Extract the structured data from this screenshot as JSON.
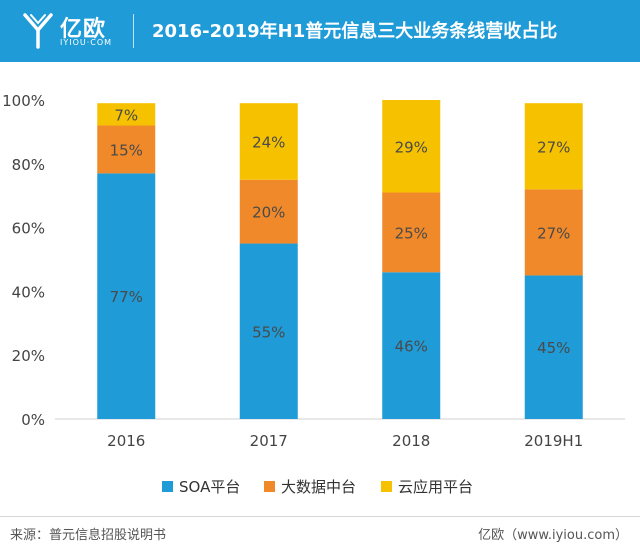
{
  "header": {
    "brand": "亿欧",
    "brand_sub": "IYIOU·COM",
    "title": "2016-2019年H1普元信息三大业务条线营收占比",
    "bg_color": "#1f9bd7"
  },
  "chart_data": {
    "type": "bar",
    "stacked": true,
    "title": "2016-2019年H1普元信息三大业务条线营收占比",
    "categories": [
      "2016",
      "2017",
      "2018",
      "2019H1"
    ],
    "series": [
      {
        "name": "SOA平台",
        "color": "#1f9bd7",
        "values": [
          77,
          55,
          46,
          45
        ]
      },
      {
        "name": "大数据中台",
        "color": "#f0892a",
        "values": [
          15,
          20,
          25,
          27
        ]
      },
      {
        "name": "云应用平台",
        "color": "#f6c200",
        "values": [
          7,
          24,
          29,
          27
        ]
      }
    ],
    "ylim": [
      0,
      100
    ],
    "yticks": [
      "0%",
      "20%",
      "40%",
      "60%",
      "80%",
      "100%"
    ],
    "value_suffix": "%",
    "legend_position": "bottom"
  },
  "footer": {
    "source": "来源：普元信息招股说明书",
    "site": "亿欧（www.iyiou.com）"
  }
}
